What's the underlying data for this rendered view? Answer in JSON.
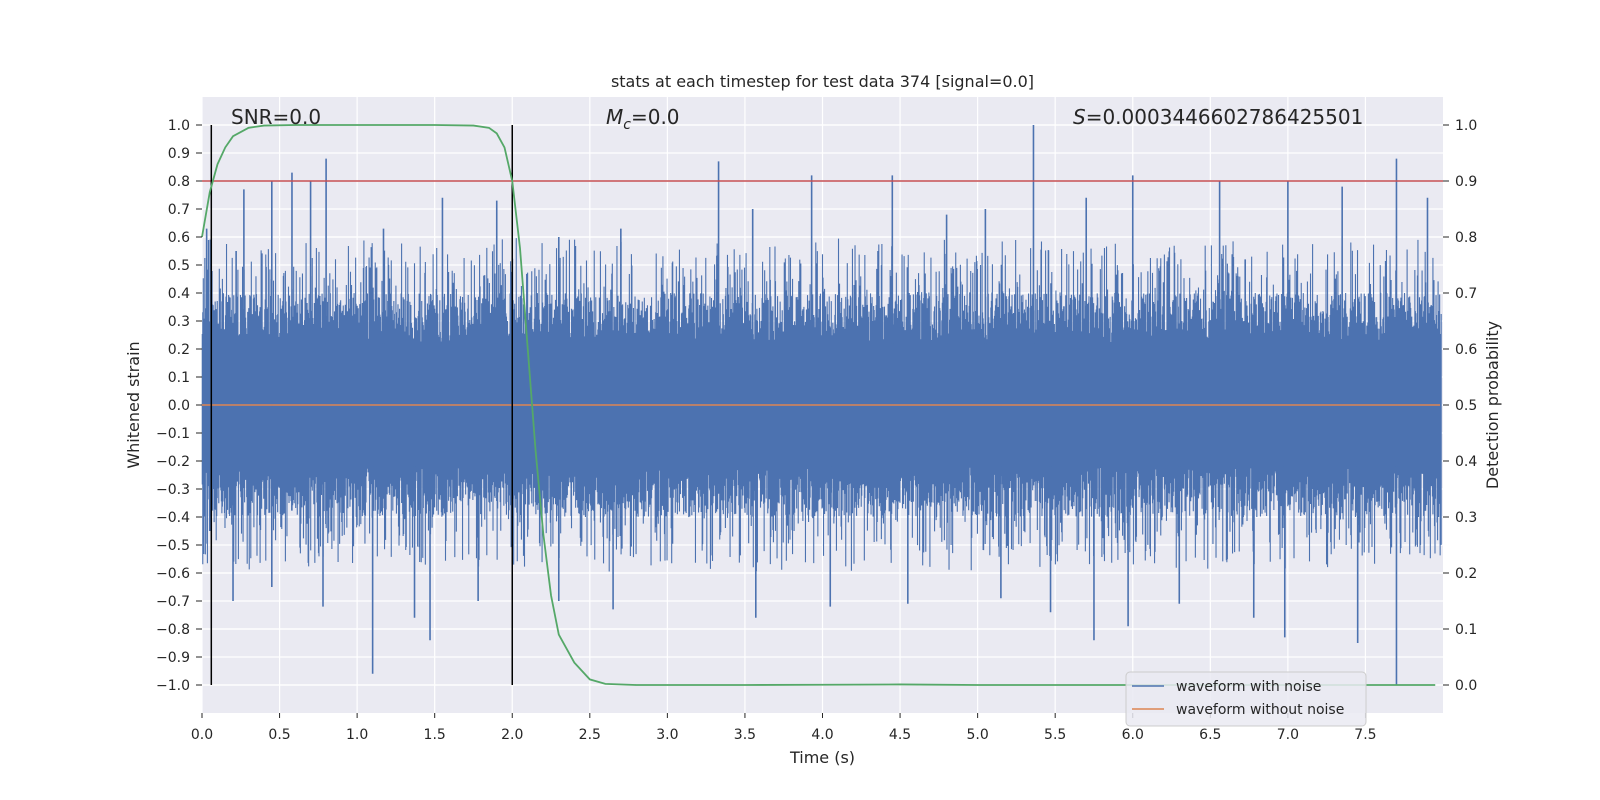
{
  "chart_data": {
    "type": "line",
    "title": "stats at each timestep for test data 374 [signal=0.0]",
    "xlabel": "Time (s)",
    "ylabel": "Whitened strain",
    "y2label": "Detection probability",
    "xlim": [
      0.0,
      8.0
    ],
    "ylim": [
      -1.1,
      1.1
    ],
    "y2lim": [
      -0.05,
      1.05
    ],
    "x_ticks": [
      "0.0",
      "0.5",
      "1.0",
      "1.5",
      "2.0",
      "2.5",
      "3.0",
      "3.5",
      "4.0",
      "4.5",
      "5.0",
      "5.5",
      "6.0",
      "6.5",
      "7.0",
      "7.5"
    ],
    "y_ticks": [
      "1.0",
      "0.9",
      "0.8",
      "0.7",
      "0.6",
      "0.5",
      "0.4",
      "0.3",
      "0.2",
      "0.1",
      "0.0",
      "−0.1",
      "−0.2",
      "−0.3",
      "−0.4",
      "−0.5",
      "−0.6",
      "−0.7",
      "−0.8",
      "−0.9",
      "−1.0"
    ],
    "y2_ticks": [
      "1.0",
      "0.9",
      "0.8",
      "0.7",
      "0.6",
      "0.5",
      "0.4",
      "0.3",
      "0.2",
      "0.1",
      "0.0"
    ],
    "grid": true,
    "legend_position": "lower-right",
    "annotations": {
      "snr": "SNR=0.0",
      "mc": "=0.0",
      "mc_symbol": "M",
      "mc_subscript": "c",
      "s": "=0.0003446602786425501",
      "s_symbol": "S"
    },
    "threshold": 0.8,
    "vlines": [
      0.06,
      2.0
    ],
    "series": [
      {
        "name": "waveform with noise",
        "color": "#4c72b0",
        "peaks_pos": [
          [
            0.03,
            0.63
          ],
          [
            0.22,
            0.55
          ],
          [
            0.27,
            0.77
          ],
          [
            0.45,
            0.8
          ],
          [
            0.58,
            0.83
          ],
          [
            0.7,
            0.8
          ],
          [
            0.8,
            0.88
          ],
          [
            1.17,
            0.63
          ],
          [
            1.55,
            0.74
          ],
          [
            1.9,
            0.73
          ],
          [
            2.3,
            0.6
          ],
          [
            2.7,
            0.63
          ],
          [
            3.33,
            0.87
          ],
          [
            3.55,
            0.7
          ],
          [
            3.93,
            0.82
          ],
          [
            4.45,
            0.82
          ],
          [
            4.8,
            0.68
          ],
          [
            5.05,
            0.7
          ],
          [
            5.36,
            1.0
          ],
          [
            5.7,
            0.74
          ],
          [
            6.0,
            0.82
          ],
          [
            6.56,
            0.8
          ],
          [
            7.0,
            0.8
          ],
          [
            7.35,
            0.78
          ],
          [
            7.7,
            0.88
          ],
          [
            7.9,
            0.74
          ]
        ],
        "peaks_neg": [
          [
            0.05,
            -0.45
          ],
          [
            0.2,
            -0.7
          ],
          [
            0.45,
            -0.65
          ],
          [
            0.78,
            -0.72
          ],
          [
            1.1,
            -0.96
          ],
          [
            1.37,
            -0.76
          ],
          [
            1.47,
            -0.84
          ],
          [
            1.78,
            -0.7
          ],
          [
            2.3,
            -0.7
          ],
          [
            2.65,
            -0.73
          ],
          [
            3.57,
            -0.76
          ],
          [
            4.05,
            -0.72
          ],
          [
            4.55,
            -0.71
          ],
          [
            5.15,
            -0.69
          ],
          [
            5.47,
            -0.74
          ],
          [
            5.75,
            -0.84
          ],
          [
            5.97,
            -0.79
          ],
          [
            6.3,
            -0.71
          ],
          [
            6.78,
            -0.76
          ],
          [
            6.98,
            -0.83
          ],
          [
            7.45,
            -0.85
          ],
          [
            7.7,
            -1.0
          ]
        ]
      },
      {
        "name": "waveform without noise",
        "color": "#dd8452",
        "values": [
          0.0
        ]
      },
      {
        "name": "Detection probability",
        "color": "#55a868",
        "axis": "right",
        "x": [
          0.0,
          0.05,
          0.1,
          0.15,
          0.2,
          0.3,
          0.4,
          0.6,
          1.0,
          1.5,
          1.75,
          1.85,
          1.9,
          1.95,
          2.0,
          2.05,
          2.1,
          2.15,
          2.2,
          2.25,
          2.3,
          2.4,
          2.5,
          2.6,
          2.8,
          3.5,
          4.0,
          4.5,
          5.0,
          6.0,
          7.0,
          7.95
        ],
        "values": [
          0.8,
          0.88,
          0.93,
          0.96,
          0.98,
          0.995,
          0.999,
          1.0,
          1.0,
          1.0,
          0.999,
          0.995,
          0.985,
          0.96,
          0.9,
          0.78,
          0.6,
          0.42,
          0.27,
          0.16,
          0.09,
          0.04,
          0.01,
          0.002,
          0.0,
          0.0,
          0.0005,
          0.001,
          0.0,
          0.0,
          0.0,
          0.0
        ]
      }
    ]
  }
}
